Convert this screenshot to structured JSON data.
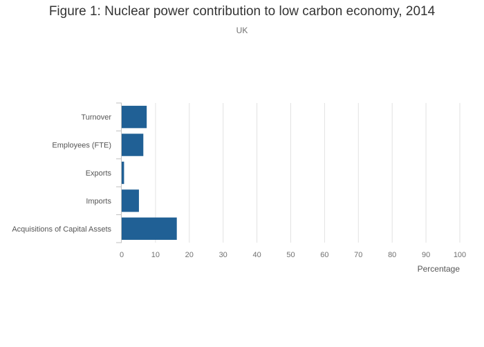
{
  "chart_data": {
    "type": "bar",
    "orientation": "horizontal",
    "title": "Figure 1: Nuclear power contribution to low carbon economy, 2014",
    "subtitle": "UK",
    "xlabel": "Percentage",
    "ylabel": "",
    "categories": [
      "Turnover",
      "Employees (FTE)",
      "Exports",
      "Imports",
      "Acquisitions of Capital Assets"
    ],
    "values": [
      7.4,
      6.4,
      0.7,
      5.1,
      16.3
    ],
    "xlim": [
      0,
      100
    ],
    "x_ticks": [
      "0",
      "10",
      "20",
      "30",
      "40",
      "50",
      "60",
      "70",
      "80",
      "90",
      "100"
    ],
    "grid": "vertical",
    "legend": "none",
    "colors": {
      "bar": "#206095",
      "grid": "#e2e2e2",
      "axis": "#bfbfbf",
      "tick_text": "#707070",
      "label_text": "#555555"
    }
  }
}
